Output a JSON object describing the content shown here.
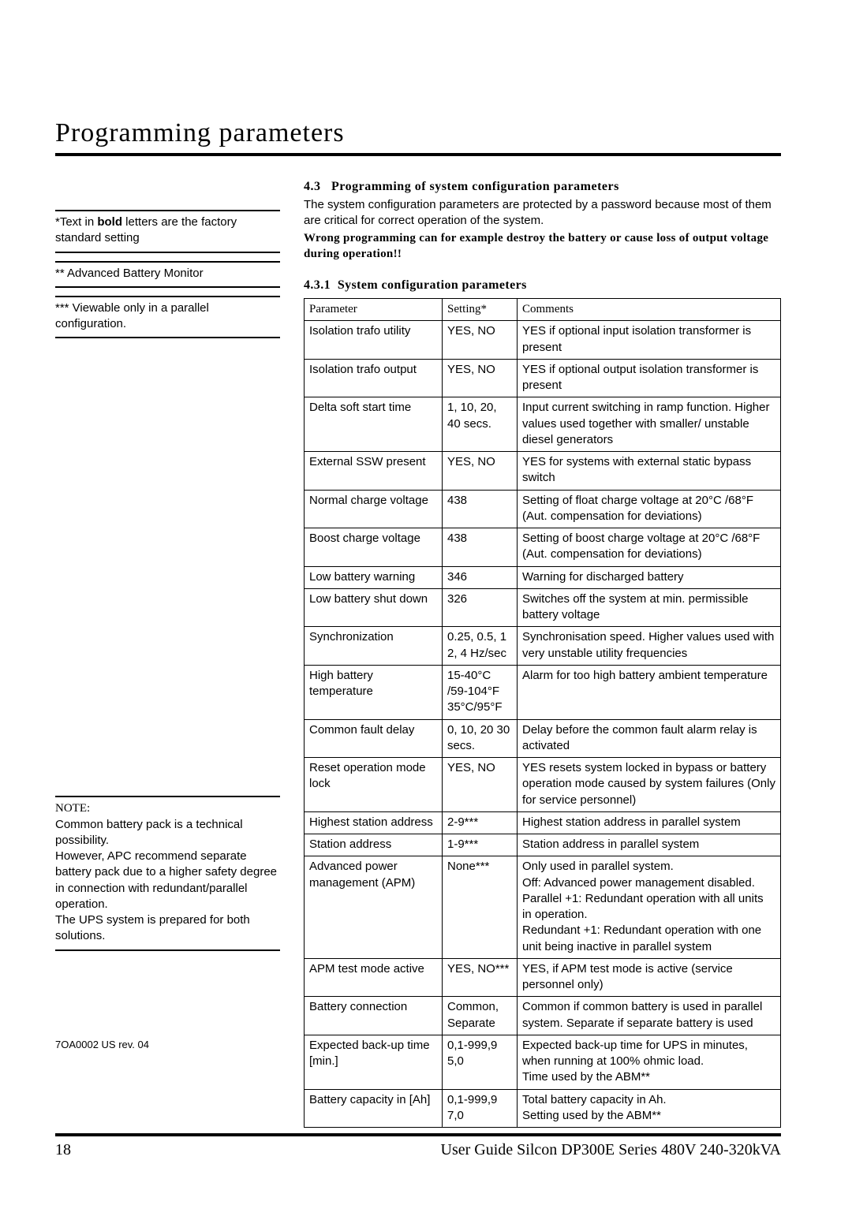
{
  "page": {
    "title": "Programming parameters",
    "number": "18",
    "footer_title": "User Guide Silcon DP300E Series 480V 240-320kVA",
    "rev": "7OA0002 US rev. 04"
  },
  "section": {
    "num": "4.3",
    "heading": "Programming of system configuration parameters",
    "p1": "The system configuration parameters are protected by a password because most of them are critical for correct operation of the system.",
    "p2": "Wrong programming can for example destroy the battery or cause loss of output voltage during operation!!"
  },
  "subsection": {
    "num": "4.3.1",
    "heading": "System configuration parameters"
  },
  "sidenotes": {
    "n1a": "*Text in ",
    "n1b": "bold",
    "n1c": " letters are the factory standard setting",
    "n2": "** Advanced Battery Monitor",
    "n3": "*** Viewable only in a parallel configuration."
  },
  "note": {
    "label": "NOTE:",
    "body": "Common battery pack is a technical possibility.\nHowever, APC recommend separate battery pack due to a higher safety degree in connection with redundant/parallel operation.\nThe UPS system is prepared for both solutions."
  },
  "table": {
    "h1": "Parameter",
    "h2": "Setting*",
    "h3": "Comments",
    "rows": [
      {
        "p": "Isolation trafo utility",
        "s": "YES, NO",
        "c": "YES if optional input isolation transformer is present"
      },
      {
        "p": "Isolation trafo output",
        "s": "YES, NO",
        "c": "YES if optional output isolation transformer is present"
      },
      {
        "p": "Delta soft start time",
        "s": "1, 10, 20, 40 secs.",
        "c": "Input current switching in ramp function. Higher values used together with smaller/ unstable diesel generators"
      },
      {
        "p": "External SSW present",
        "s": "YES, NO",
        "c": "YES for systems with external static bypass switch"
      },
      {
        "p": "Normal charge voltage",
        "s": "438",
        "c": "Setting of float charge voltage at 20°C /68°F (Aut. compensation for deviations)"
      },
      {
        "p": "Boost charge voltage",
        "s": "438",
        "c": "Setting of boost charge voltage at 20°C /68°F (Aut. compensation for deviations)"
      },
      {
        "p": "Low battery warning",
        "s": "346",
        "c": "Warning for discharged battery"
      },
      {
        "p": "Low battery shut down",
        "s": "326",
        "c": "Switches off the system at min. permissible battery voltage"
      },
      {
        "p": "Synchronization",
        "s": "0.25, 0.5, 1 2, 4 Hz/sec",
        "c": "Synchronisation speed. Higher values used with very unstable utility frequencies"
      },
      {
        "p": "High battery temperature",
        "s": "15-40°C /59-104°F 35°C/95°F",
        "c": "Alarm for too high battery ambient temperature"
      },
      {
        "p": "Common fault delay",
        "s": "0, 10, 20 30 secs.",
        "c": "Delay before the common fault alarm relay is activated"
      },
      {
        "p": "Reset operation mode lock",
        "s": "YES, NO",
        "c": "YES resets system locked in bypass or battery operation mode caused by system failures (Only for service personnel)"
      },
      {
        "p": "Highest station address",
        "s": "2-9***",
        "c": "Highest station address in parallel system"
      },
      {
        "p": "Station address",
        "s": "1-9***",
        "c": "Station address in parallel system"
      },
      {
        "p": "Advanced power management (APM)",
        "s": "None***",
        "c": "Only used in parallel system.\nOff: Advanced power management disabled. Parallel +1: Redundant operation with all units in operation.\nRedundant +1: Redundant operation with one unit being inactive in parallel system"
      },
      {
        "p": "APM test mode active",
        "s": "YES, NO***",
        "c": "YES, if APM test mode is active (service personnel only)"
      },
      {
        "p": "Battery connection",
        "s": "Common, Separate",
        "c": "Common if common battery is used in parallel system. Separate if separate battery is used"
      },
      {
        "p": "Expected back-up time [min.]",
        "s": "0,1-999,9 5,0",
        "c": "Expected back-up time for UPS in minutes, when running at 100% ohmic load.\nTime used by the ABM**"
      },
      {
        "p": "Battery capacity in [Ah]",
        "s": "0,1-999,9 7,0",
        "c": "Total battery capacity in Ah.\nSetting used by the ABM**"
      }
    ]
  }
}
